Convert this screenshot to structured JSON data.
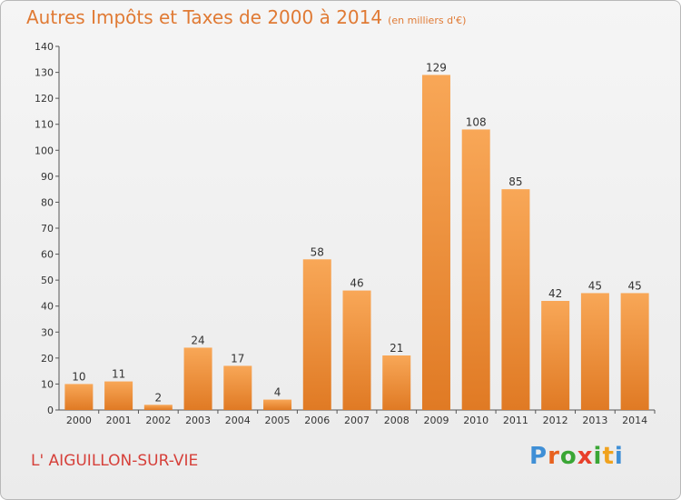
{
  "chart_data": {
    "type": "bar",
    "title": "Autres Impôts et Taxes de 2000 à 2014",
    "unit": "(en milliers d'€)",
    "categories": [
      "2000",
      "2001",
      "2002",
      "2003",
      "2004",
      "2005",
      "2006",
      "2007",
      "2008",
      "2009",
      "2010",
      "2011",
      "2012",
      "2013",
      "2014"
    ],
    "values": [
      10,
      11,
      2,
      24,
      17,
      4,
      58,
      46,
      21,
      129,
      108,
      85,
      42,
      45,
      45
    ],
    "ylim": [
      0,
      140
    ],
    "yticks": [
      0,
      10,
      20,
      30,
      40,
      50,
      60,
      70,
      80,
      90,
      100,
      110,
      120,
      130,
      140
    ],
    "grid": false,
    "colors": {
      "bar_top": "#f8a757",
      "bar_bottom": "#e07a24",
      "title": "#e07a34"
    }
  },
  "footer": {
    "place": "L' AIGUILLON-SUR-VIE",
    "logo": {
      "letters": [
        "P",
        "r",
        "o",
        "x",
        "i",
        "t",
        "i"
      ],
      "colors": [
        "#3f8fd6",
        "#e8621f",
        "#3aa635",
        "#e83f2a",
        "#3aa635",
        "#f0a21e",
        "#3f8fd6"
      ]
    }
  }
}
